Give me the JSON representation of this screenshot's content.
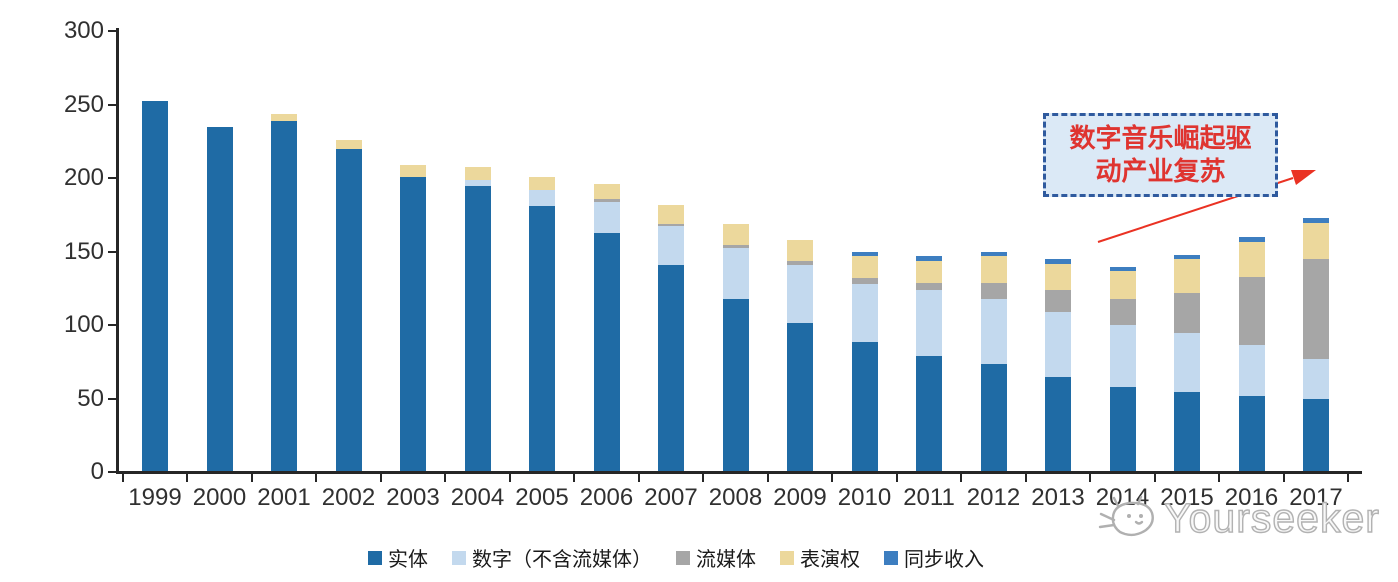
{
  "chart_data": {
    "type": "bar",
    "stacked": true,
    "title": "",
    "xlabel": "",
    "ylabel": "",
    "ylim": [
      0,
      300
    ],
    "yticks": [
      0,
      50,
      100,
      150,
      200,
      250,
      300
    ],
    "grid": false,
    "legend_position": "bottom",
    "categories": [
      "1999",
      "2000",
      "2001",
      "2002",
      "2003",
      "2004",
      "2005",
      "2006",
      "2007",
      "2008",
      "2009",
      "2010",
      "2011",
      "2012",
      "2013",
      "2014",
      "2015",
      "2016",
      "2017"
    ],
    "series": [
      {
        "name": "实体",
        "color": "#1f6ba5",
        "values": [
          252,
          234,
          238,
          219,
          200,
          194,
          180,
          162,
          140,
          117,
          101,
          88,
          78,
          73,
          64,
          57,
          54,
          51,
          49
        ]
      },
      {
        "name": "数字（不含流媒体）",
        "color": "#c3d9ee",
        "values": [
          0,
          0,
          0,
          0,
          0,
          4,
          11,
          21,
          27,
          35,
          39,
          39,
          45,
          44,
          44,
          42,
          40,
          35,
          27
        ]
      },
      {
        "name": "流媒体",
        "color": "#a6a6a6",
        "values": [
          0,
          0,
          0,
          0,
          0,
          0,
          0,
          2,
          1,
          2,
          3,
          4,
          5,
          11,
          15,
          18,
          27,
          46,
          68
        ]
      },
      {
        "name": "表演权",
        "color": "#ecd89c",
        "values": [
          0,
          0,
          5,
          6,
          8,
          9,
          9,
          10,
          13,
          14,
          14,
          15,
          15,
          18,
          18,
          19,
          23,
          24,
          25
        ]
      },
      {
        "name": "同步收入",
        "color": "#3d7ec0",
        "values": [
          0,
          0,
          0,
          0,
          0,
          0,
          0,
          0,
          0,
          0,
          0,
          3,
          3,
          3,
          3,
          3,
          3,
          3,
          3
        ]
      }
    ]
  },
  "annotation": {
    "line1": "数字音乐崛起驱",
    "line2": "动产业复苏",
    "arrow_color": "#ea3223"
  },
  "watermark": {
    "text": "Yourseeker"
  }
}
